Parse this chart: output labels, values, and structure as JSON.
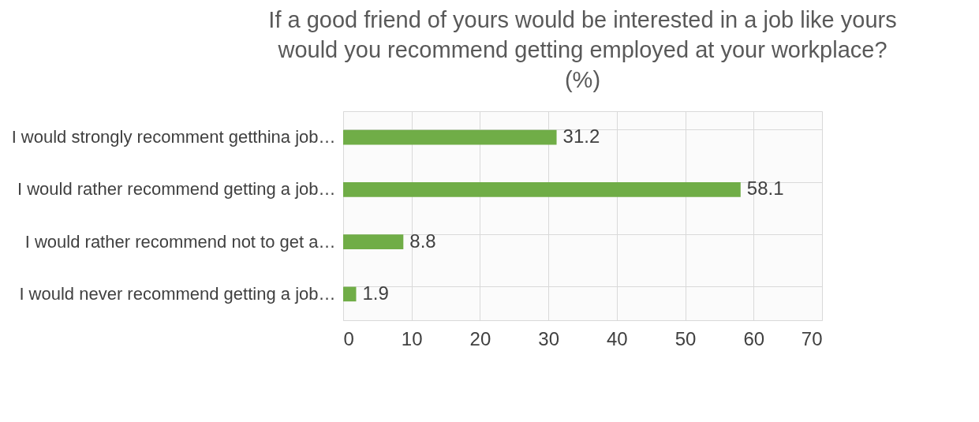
{
  "chart_data": {
    "type": "bar",
    "orientation": "horizontal",
    "title": "If  a good friend of yours would be interested in a job like yours\nwould you recommend getting employed at your workplace?\n(%)",
    "categories": [
      "I would strongly recomment getthina job…",
      "I would rather recommend getting a job…",
      "I would rather recommend not to get a…",
      "I would never recommend getting a job…"
    ],
    "values": [
      31.2,
      58.1,
      8.8,
      1.9
    ],
    "color": "#70ad47",
    "xlim": [
      0,
      70
    ],
    "xticks": [
      0,
      10,
      20,
      30,
      40,
      50,
      60,
      70
    ],
    "grid": true,
    "data_labels": true
  }
}
